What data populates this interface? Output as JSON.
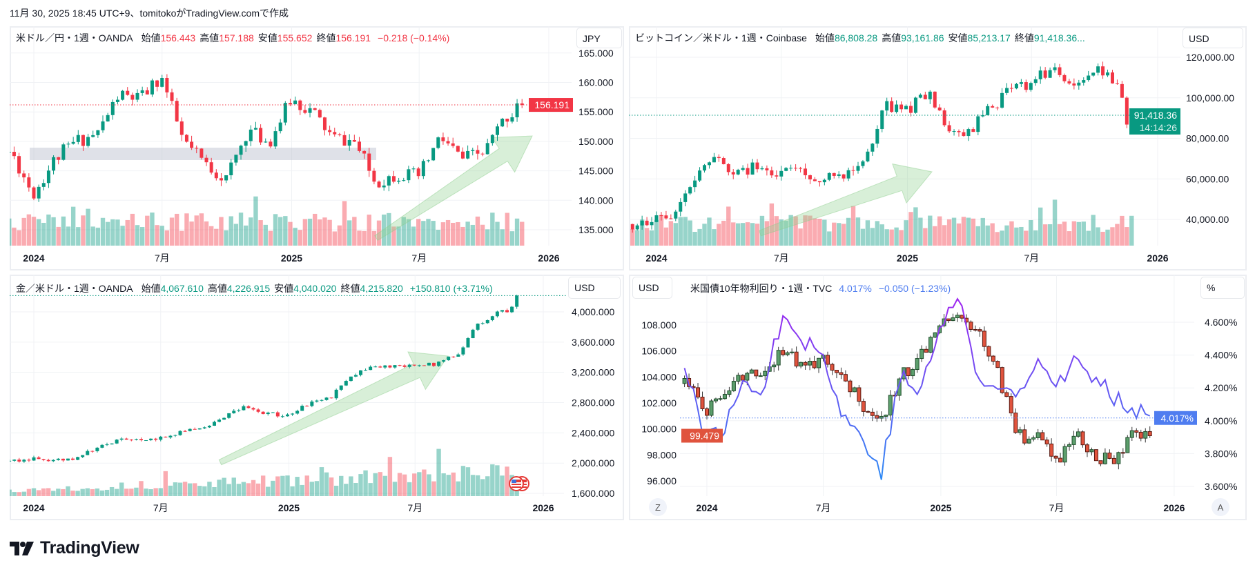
{
  "top_caption": "11月 30, 2025 18:45 UTC+9、tomitokoがTradingView.comで作成",
  "logo": {
    "text": "TradingView"
  },
  "colors": {
    "up": "#089981",
    "down": "#f23645",
    "bond_up": "#5c9e6c",
    "bond_down": "#e0533d",
    "yield_line_high": "#9c27f0",
    "yield_line_low": "#2b8cf5",
    "yield_label": "#4f7df0",
    "arrow": "#8fd08f"
  },
  "panels": [
    {
      "symbol": "米ドル／円・1週・OANDA",
      "ohlc": [
        {
          "k": "始値",
          "v": "156.443"
        },
        {
          "k": "高値",
          "v": "157.188"
        },
        {
          "k": "安値",
          "v": "155.652"
        },
        {
          "k": "終値",
          "v": "156.191"
        }
      ],
      "change": "−0.218 (−0.14%)",
      "value_color": "#f23645",
      "currency": "JPY",
      "price_label": "156.191"
    },
    {
      "symbol": "ビットコイン／米ドル・1週・Coinbase",
      "ohlc": [
        {
          "k": "始値",
          "v": "86,808.28"
        },
        {
          "k": "高値",
          "v": "93,161.86"
        },
        {
          "k": "安値",
          "v": "85,213.17"
        },
        {
          "k": "終値",
          "v": "91,418.36..."
        }
      ],
      "change": "",
      "value_color": "#089981",
      "currency": "USD",
      "price_label": "91,418.36",
      "countdown": "14:14:26"
    },
    {
      "symbol": "金／米ドル・1週・OANDA",
      "ohlc": [
        {
          "k": "始値",
          "v": "4,067.610"
        },
        {
          "k": "高値",
          "v": "4,226.915"
        },
        {
          "k": "安値",
          "v": "4,040.020"
        },
        {
          "k": "終値",
          "v": "4,215.820"
        }
      ],
      "change": "+150.810 (+3.71%)",
      "value_color": "#089981",
      "currency": "USD"
    },
    {
      "symbol": "米国債10年物利回り・1週・TVC",
      "value": "4.017%",
      "change": "−0.050 (−1.23%)",
      "value_color": "#4f7df0",
      "left_currency": "USD",
      "right_unit": "%",
      "left_price_label": "99.479",
      "right_price_label": "4.017%",
      "z_button": "Z",
      "a_button": "A"
    }
  ],
  "chart_data": [
    {
      "type": "candlestick",
      "title": "米ドル／円・1週・OANDA",
      "interval": "1週",
      "x_ticks": [
        "2024",
        "7月",
        "2025",
        "7月",
        "2026"
      ],
      "x_tick_dates": [
        "2024-01",
        "2024-07",
        "2025-01",
        "2025-07",
        "2026-01"
      ],
      "y_ticks": [
        "165.000",
        "160.000",
        "155.000",
        "150.000",
        "145.000",
        "140.000",
        "135.000"
      ],
      "months": [
        "2023-11",
        "2023-12",
        "2024-01",
        "2024-02",
        "2024-03",
        "2024-04",
        "2024-05",
        "2024-06",
        "2024-07",
        "2024-08",
        "2024-09",
        "2024-10",
        "2024-11",
        "2024-12",
        "2025-01",
        "2025-02",
        "2025-03",
        "2025-04",
        "2025-05",
        "2025-06",
        "2025-07",
        "2025-08",
        "2025-09",
        "2025-10",
        "2025-11"
      ],
      "monthly_close_approx": [
        148.2,
        141.0,
        147.0,
        150.0,
        151.3,
        157.8,
        157.2,
        161.0,
        150.0,
        146.2,
        143.6,
        152.0,
        149.8,
        157.2,
        155.0,
        150.6,
        149.9,
        143.0,
        144.5,
        144.0,
        150.7,
        147.0,
        148.0,
        154.0,
        156.2
      ],
      "last_candle": {
        "open": 156.443,
        "high": 157.188,
        "low": 155.652,
        "close": 156.191
      },
      "volume": true
    },
    {
      "type": "candlestick",
      "title": "ビットコイン／米ドル・1週・Coinbase",
      "interval": "1週",
      "x_ticks": [
        "2024",
        "7月",
        "2025",
        "7月",
        "2026"
      ],
      "x_tick_dates": [
        "2024-01",
        "2024-07",
        "2025-01",
        "2025-07",
        "2026-01"
      ],
      "y_ticks": [
        "120,000.00",
        "100,000.00",
        "80,000.00",
        "60,000.00",
        "40,000.00"
      ],
      "months": [
        "2023-11",
        "2023-12",
        "2024-01",
        "2024-02",
        "2024-03",
        "2024-04",
        "2024-05",
        "2024-06",
        "2024-07",
        "2024-08",
        "2024-09",
        "2024-10",
        "2024-11",
        "2024-12",
        "2025-01",
        "2025-02",
        "2025-03",
        "2025-04",
        "2025-05",
        "2025-06",
        "2025-07",
        "2025-08",
        "2025-09",
        "2025-10",
        "2025-11"
      ],
      "monthly_close_approx": [
        37700,
        42200,
        42500,
        61000,
        70000,
        63000,
        67500,
        62700,
        64600,
        58900,
        63300,
        70200,
        96400,
        93400,
        102400,
        84300,
        82500,
        94200,
        104600,
        107100,
        115700,
        108200,
        114000,
        109500,
        86800
      ],
      "last_candle": {
        "open": 86808.28,
        "high": 93161.86,
        "low": 85213.17,
        "close": 91418.36
      },
      "volume": true
    },
    {
      "type": "candlestick",
      "title": "金／米ドル・1週・OANDA",
      "interval": "1週",
      "x_ticks": [
        "2024",
        "7月",
        "2025",
        "7月",
        "2026"
      ],
      "x_tick_dates": [
        "2024-01",
        "2024-07",
        "2025-01",
        "2025-07",
        "2026-01"
      ],
      "y_ticks": [
        "4,000.000",
        "3,600.000",
        "3,200.000",
        "2,800.000",
        "2,400.000",
        "2,000.000",
        "1,600.000"
      ],
      "months": [
        "2023-11",
        "2023-12",
        "2024-01",
        "2024-02",
        "2024-03",
        "2024-04",
        "2024-05",
        "2024-06",
        "2024-07",
        "2024-08",
        "2024-09",
        "2024-10",
        "2024-11",
        "2024-12",
        "2025-01",
        "2025-02",
        "2025-03",
        "2025-04",
        "2025-05",
        "2025-06",
        "2025-07",
        "2025-08",
        "2025-09",
        "2025-10",
        "2025-11"
      ],
      "monthly_close_approx": [
        2030,
        2055,
        2030,
        2040,
        2200,
        2300,
        2330,
        2330,
        2420,
        2480,
        2620,
        2740,
        2650,
        2630,
        2790,
        2860,
        3120,
        3290,
        3290,
        3300,
        3300,
        3440,
        3850,
        4000,
        4067
      ],
      "last_candle": {
        "open": 4067.61,
        "high": 4226.915,
        "low": 4040.02,
        "close": 4215.82
      },
      "volume": true
    },
    {
      "type": "candlestick+line",
      "title": "米国債10年物利回り・1週・TVC",
      "interval": "1週",
      "x_ticks": [
        "2024",
        "7月",
        "2025",
        "7月",
        "2026"
      ],
      "x_tick_dates": [
        "2024-01",
        "2024-07",
        "2025-01",
        "2025-07",
        "2026-01"
      ],
      "left_y_ticks": [
        "108.000",
        "106.000",
        "104.000",
        "102.000",
        "100.000",
        "98.000",
        "96.000"
      ],
      "right_y_ticks": [
        "4.600%",
        "4.400%",
        "4.200%",
        "4.000%",
        "3.800%",
        "3.600%"
      ],
      "months": [
        "2023-11",
        "2023-12",
        "2024-01",
        "2024-02",
        "2024-03",
        "2024-04",
        "2024-05",
        "2024-06",
        "2024-07",
        "2024-08",
        "2024-09",
        "2024-10",
        "2024-11",
        "2024-12",
        "2025-01",
        "2025-02",
        "2025-03",
        "2025-04",
        "2025-05",
        "2025-06",
        "2025-07",
        "2025-08",
        "2025-09",
        "2025-10",
        "2025-11"
      ],
      "candles_monthly_close_approx_usd": [
        103.5,
        101.3,
        103.3,
        104.2,
        104.5,
        106.0,
        104.7,
        105.6,
        104.1,
        101.7,
        100.8,
        104.0,
        105.7,
        108.0,
        108.4,
        107.4,
        104.2,
        99.5,
        99.4,
        97.4,
        99.9,
        97.8,
        97.8,
        99.6,
        99.8
      ],
      "candles_last": {
        "open": 99.8,
        "high": 100.2,
        "low": 99.3,
        "close": 99.479
      },
      "yield_monthly_approx_pct": [
        4.33,
        3.88,
        3.97,
        4.25,
        4.2,
        4.68,
        4.5,
        4.4,
        4.03,
        3.9,
        3.7,
        4.28,
        4.17,
        4.57,
        4.78,
        4.21,
        4.21,
        4.16,
        4.4,
        4.23,
        4.37,
        4.23,
        4.15,
        4.08,
        4.017
      ]
    }
  ]
}
